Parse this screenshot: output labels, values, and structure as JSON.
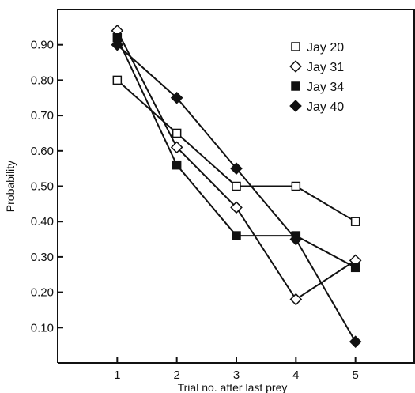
{
  "chart_data": {
    "type": "line",
    "xlabel": "Trial no. after last prey",
    "ylabel": "Probability",
    "x": [
      1,
      2,
      3,
      4,
      5
    ],
    "xlim": [
      0,
      6
    ],
    "ylim": [
      0,
      1.0
    ],
    "xticks": [
      "1",
      "2",
      "3",
      "4",
      "5"
    ],
    "yticks": [
      {
        "value": 0.1,
        "label": "0.10"
      },
      {
        "value": 0.2,
        "label": "0.20"
      },
      {
        "value": 0.3,
        "label": "0.30"
      },
      {
        "value": 0.4,
        "label": "0.40"
      },
      {
        "value": 0.5,
        "label": "0.50"
      },
      {
        "value": 0.6,
        "label": "0.60"
      },
      {
        "value": 0.7,
        "label": "0.70"
      },
      {
        "value": 0.8,
        "label": "0.80"
      },
      {
        "value": 0.9,
        "label": "0.90"
      }
    ],
    "grid": false,
    "legend_position": "top-right",
    "series": [
      {
        "name": "Jay 20",
        "marker": "open-square",
        "values": [
          0.8,
          0.65,
          0.5,
          0.5,
          0.4
        ]
      },
      {
        "name": "Jay 31",
        "marker": "open-diamond",
        "values": [
          0.94,
          0.61,
          0.44,
          0.18,
          0.29
        ]
      },
      {
        "name": "Jay 34",
        "marker": "filled-square",
        "values": [
          0.92,
          0.56,
          0.36,
          0.36,
          0.27
        ]
      },
      {
        "name": "Jay 40",
        "marker": "filled-diamond",
        "values": [
          0.9,
          0.75,
          0.55,
          0.35,
          0.06
        ]
      }
    ]
  }
}
